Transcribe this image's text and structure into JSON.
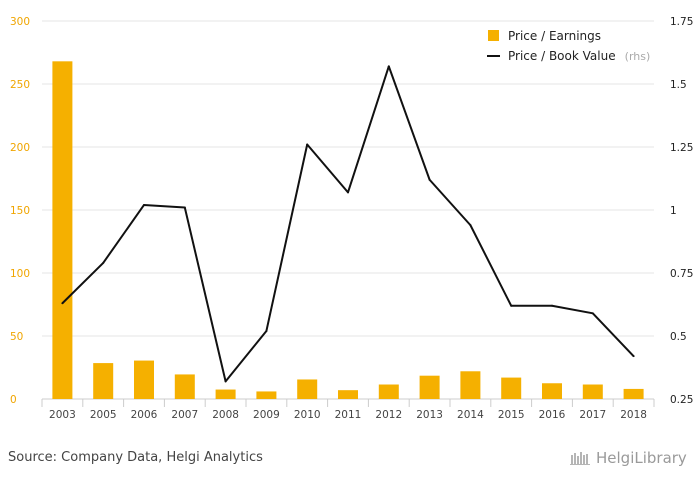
{
  "chart_data": {
    "type": "bar",
    "categories": [
      "2003",
      "2005",
      "2006",
      "2007",
      "2008",
      "2009",
      "2010",
      "2011",
      "2012",
      "2013",
      "2014",
      "2015",
      "2016",
      "2017",
      "2018"
    ],
    "series": [
      {
        "name": "Price / Earnings",
        "type": "bar",
        "axis": "left",
        "color": "#f5b000",
        "values": [
          268,
          28.5,
          30.5,
          19.5,
          7.5,
          6,
          15.5,
          7,
          11.5,
          18.5,
          22,
          17,
          12.5,
          11.5,
          8
        ]
      },
      {
        "name": "Price / Book Value",
        "type": "line",
        "axis": "right",
        "color": "#111111",
        "values": [
          0.63,
          0.79,
          1.02,
          1.01,
          0.32,
          0.52,
          1.26,
          1.07,
          1.57,
          1.12,
          0.94,
          0.62,
          0.62,
          0.59,
          0.42
        ]
      }
    ],
    "yleft": {
      "lim": [
        0,
        300
      ],
      "ticks": [
        0,
        50,
        100,
        150,
        200,
        250,
        300
      ]
    },
    "yright": {
      "lim": [
        0.25,
        1.75
      ],
      "ticks": [
        "0.25",
        "0.5",
        "0.75",
        "1",
        "1.25",
        "1.5",
        "1.75"
      ]
    },
    "grid": true,
    "legend": {
      "position": "top-right",
      "items": [
        {
          "label": "Price / Earnings",
          "marker": "square",
          "color": "#f5b000"
        },
        {
          "label": "Price / Book Value",
          "note": "(rhs)",
          "marker": "line",
          "color": "#111111"
        }
      ]
    }
  },
  "footer": {
    "source": "Source: Company Data, Helgi Analytics",
    "logo_text": "HelgiLibrary"
  }
}
